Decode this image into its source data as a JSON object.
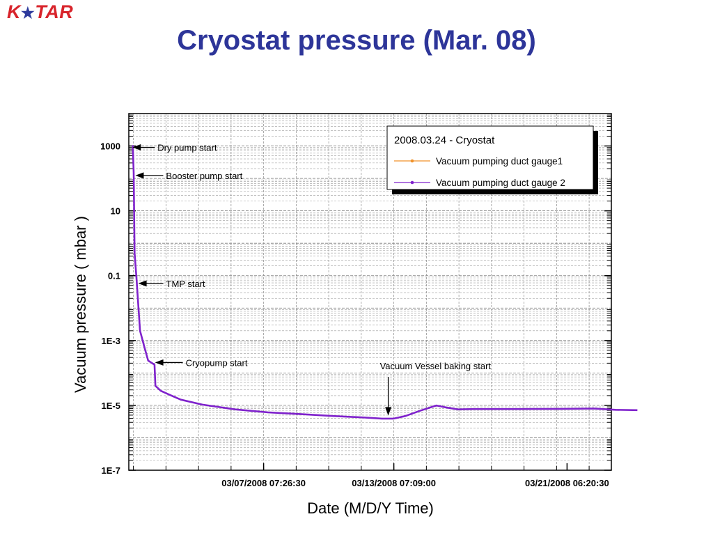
{
  "logo": {
    "text_left": "K",
    "text_right": "TAR",
    "star_glyph": "★",
    "color": "#d8242b",
    "star_color": "#2d3a9c"
  },
  "slide": {
    "title": "Cryostat pressure (Mar. 08)",
    "title_color": "#2d3599"
  },
  "chart_data": {
    "type": "line",
    "title": "",
    "xlabel": "Date (M/D/Y Time)",
    "ylabel": "Vacuum pressure ( mbar )",
    "x_ticks": [
      "03/07/2008 07:26:30",
      "03/13/2008 07:09:00",
      "03/21/2008 06:20:30"
    ],
    "y_scale": "log",
    "ylim": [
      1e-07,
      10000
    ],
    "y_ticks": [
      {
        "v": 1000,
        "label": "1000"
      },
      {
        "v": 10,
        "label": "10"
      },
      {
        "v": 0.1,
        "label": "0.1"
      },
      {
        "v": 0.001,
        "label": "1E-3"
      },
      {
        "v": 1e-05,
        "label": "1E-5"
      },
      {
        "v": 1e-07,
        "label": "1E-7"
      }
    ],
    "grid": true,
    "legend": {
      "title": "2008.03.24 - Cryostat",
      "position": "top-right",
      "entries": [
        {
          "name": "Vacuum pumping duct gauge1",
          "color": "#f0922b"
        },
        {
          "name": "Vacuum pumping duct gauge 2",
          "color": "#7f22cc"
        }
      ]
    },
    "series": [
      {
        "name": "Vacuum pumping duct gauge 2",
        "color": "#7f22cc",
        "points": [
          [
            "03/01/2008 06:30",
            1000
          ],
          [
            "03/01/2008 07:00",
            1000
          ],
          [
            "03/01/2008 08:00",
            150
          ],
          [
            "03/01/2008 09:00",
            0.5
          ],
          [
            "03/01/2008 11:00",
            0.09
          ],
          [
            "03/01/2008 15:00",
            0.002
          ],
          [
            "03/01/2008 20:00",
            0.0006
          ],
          [
            "03/02/2008 00:00",
            0.00024
          ],
          [
            "03/02/2008 07:00",
            0.00018
          ],
          [
            "03/02/2008 08:00",
            4e-05
          ],
          [
            "03/02/2008 14:00",
            2.8e-05
          ],
          [
            "03/03/2008 00:00",
            2.1e-05
          ],
          [
            "03/03/2008 12:00",
            1.5e-05
          ],
          [
            "03/04/2008 12:00",
            1.05e-05
          ],
          [
            "03/06/2008 00:00",
            7.5e-06
          ],
          [
            "03/07/2008 12:00",
            6.1e-06
          ],
          [
            "03/09/2008 00:00",
            5.4e-06
          ],
          [
            "03/10/2008 12:00",
            4.7e-06
          ],
          [
            "03/12/2008 00:00",
            4.2e-06
          ],
          [
            "03/12/2008 18:00",
            3.9e-06
          ],
          [
            "03/13/2008 07:00",
            3.9e-06
          ],
          [
            "03/13/2008 20:00",
            4.7e-06
          ],
          [
            "03/14/2008 12:00",
            6.8e-06
          ],
          [
            "03/15/2008 06:00",
            9.9e-06
          ],
          [
            "03/15/2008 18:00",
            8.5e-06
          ],
          [
            "03/16/2008 06:00",
            7.5e-06
          ],
          [
            "03/17/2008 00:00",
            7.7e-06
          ],
          [
            "03/19/2008 00:00",
            7.7e-06
          ],
          [
            "03/21/2008 00:00",
            7.8e-06
          ],
          [
            "03/22/2008 12:00",
            8e-06
          ],
          [
            "03/23/2008 12:00",
            7.3e-06
          ],
          [
            "03/24/2008 12:00",
            7.1e-06
          ]
        ]
      }
    ],
    "annotations": [
      {
        "text": "Dry pump start",
        "x": "03/01/2008 06:40",
        "y": 1000
      },
      {
        "text": "Booster pump start",
        "x": "03/01/2008 06:50",
        "y": 150
      },
      {
        "text": "TMP start",
        "x": "03/01/2008 10:00",
        "y": 0.09
      },
      {
        "text": "Cryopump start",
        "x": "03/02/2008 06:00",
        "y": 0.00022
      },
      {
        "text": "Vacuum Vessel baking start",
        "x": "03/13/2008 01:00",
        "y": 4.2e-06
      }
    ]
  }
}
